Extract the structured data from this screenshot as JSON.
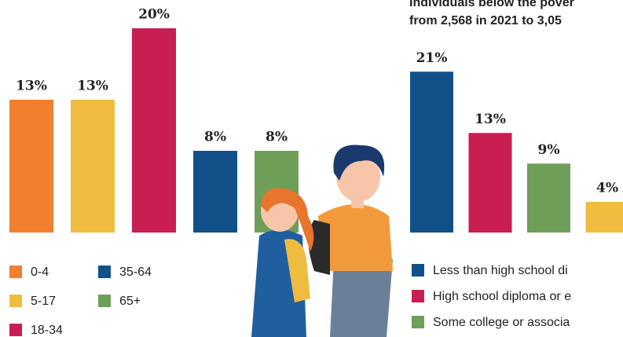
{
  "chart_data": [
    {
      "type": "bar",
      "categories": [
        "0-4",
        "5-17",
        "18-34",
        "35-64",
        "65+"
      ],
      "values": [
        13,
        13,
        20,
        8,
        8
      ],
      "value_labels": [
        "13%",
        "13%",
        "20%",
        "8%",
        "8%"
      ],
      "colors": [
        "#f07f2e",
        "#f0bc40",
        "#c81e52",
        "#12508a",
        "#6f9e58"
      ]
    },
    {
      "type": "bar",
      "title": [
        "Individuals below the pover",
        "from 2,568 in 2021 to 3,05"
      ],
      "categories": [
        "Less than high school di",
        "High school diploma or e",
        "Some college or associa",
        null
      ],
      "values": [
        21,
        13,
        9,
        4
      ],
      "value_labels": [
        "21%",
        "13%",
        "9%",
        "4%"
      ],
      "colors": [
        "#12508a",
        "#c81e52",
        "#6f9e58",
        "#f0bc40"
      ]
    }
  ]
}
